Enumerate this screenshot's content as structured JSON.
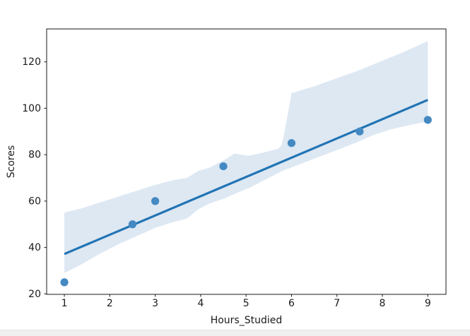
{
  "page": {
    "background": "#ffffff",
    "bottom_strip_color": "#f0f0f0"
  },
  "chart_data": {
    "type": "scatter",
    "title": "",
    "xlabel": "Hours_Studied",
    "ylabel": "Scores",
    "xlim": [
      0.61,
      9.4
    ],
    "ylim": [
      19.8,
      134.2
    ],
    "x_ticks": [
      1,
      2,
      3,
      4,
      5,
      6,
      7,
      8,
      9
    ],
    "y_ticks": [
      20,
      40,
      60,
      80,
      100,
      120
    ],
    "grid": false,
    "legend_position": "none",
    "points": [
      {
        "x": 1.0,
        "y": 25
      },
      {
        "x": 2.5,
        "y": 50
      },
      {
        "x": 3.0,
        "y": 60
      },
      {
        "x": 4.5,
        "y": 75
      },
      {
        "x": 6.0,
        "y": 85
      },
      {
        "x": 7.5,
        "y": 90
      },
      {
        "x": 9.0,
        "y": 95
      }
    ],
    "regression_line": {
      "x": [
        1.0,
        9.0
      ],
      "y": [
        37.2,
        103.6
      ]
    },
    "ci_band": {
      "upper": [
        [
          1.0,
          55.0
        ],
        [
          1.4,
          57.0
        ],
        [
          1.8,
          59.5
        ],
        [
          2.2,
          62.0
        ],
        [
          2.6,
          64.5
        ],
        [
          3.0,
          67.0
        ],
        [
          3.4,
          69.0
        ],
        [
          3.7,
          70.0
        ],
        [
          3.95,
          73.0
        ],
        [
          4.2,
          74.5
        ],
        [
          4.5,
          77.5
        ],
        [
          4.75,
          80.5
        ],
        [
          5.05,
          79.5
        ],
        [
          5.4,
          81.0
        ],
        [
          5.7,
          82.5
        ],
        [
          5.78,
          84.0
        ],
        [
          5.85,
          90.0
        ],
        [
          5.93,
          99.0
        ],
        [
          6.0,
          106.5
        ],
        [
          6.5,
          109.5
        ],
        [
          7.0,
          113.0
        ],
        [
          7.5,
          116.5
        ],
        [
          8.0,
          120.5
        ],
        [
          8.5,
          124.5
        ],
        [
          9.0,
          129.0
        ]
      ],
      "lower": [
        [
          1.0,
          29.0
        ],
        [
          1.4,
          33.0
        ],
        [
          1.8,
          37.5
        ],
        [
          2.2,
          41.5
        ],
        [
          2.6,
          45.0
        ],
        [
          3.0,
          48.5
        ],
        [
          3.4,
          51.0
        ],
        [
          3.7,
          52.5
        ],
        [
          3.95,
          56.5
        ],
        [
          4.2,
          59.0
        ],
        [
          4.5,
          61.0
        ],
        [
          4.8,
          63.5
        ],
        [
          5.1,
          66.0
        ],
        [
          5.4,
          69.0
        ],
        [
          5.8,
          73.0
        ],
        [
          6.2,
          76.0
        ],
        [
          6.6,
          79.0
        ],
        [
          7.0,
          82.0
        ],
        [
          7.4,
          85.0
        ],
        [
          7.8,
          88.5
        ],
        [
          8.2,
          91.0
        ],
        [
          8.6,
          92.8
        ],
        [
          9.0,
          94.3
        ]
      ]
    },
    "colors": {
      "scatter": "#4489c2",
      "line": "#2274b4",
      "band": "#dde8f3",
      "axis": "#1a1a1a",
      "tick_text": "#1a1a1a"
    },
    "marker_radius": 5.6,
    "line_width": 3.2
  }
}
